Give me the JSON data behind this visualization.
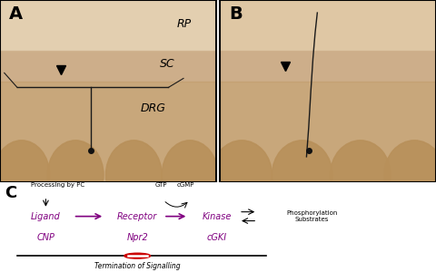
{
  "panel_A_bg": "#d4b896",
  "panel_B_bg": "#d4b896",
  "panel_C_bg": "#ffffff",
  "border_color": "#000000",
  "label_A": "A",
  "label_B": "B",
  "label_C": "C",
  "text_RP": "RP",
  "text_SC": "SC",
  "text_DRG": "DRG",
  "purple_color": "#800080",
  "arrow_color": "#800080",
  "signaling_line_color": "#000000",
  "stop_circle_color": "#cc0000",
  "processing_text": "Processing by PC",
  "GTP_text": "GTP",
  "cGMP_text": "cGMP",
  "ligand_text": "Ligand",
  "receptor_text": "Receptor",
  "kinase_text": "Kinase",
  "phosphorylation_text": "Phosphorylation\nSubstrates",
  "CNP_text": "CNP",
  "Npr2_text": "Npr2",
  "cGKI_text": "cGKI",
  "termination_text": "Termination of Signalling"
}
